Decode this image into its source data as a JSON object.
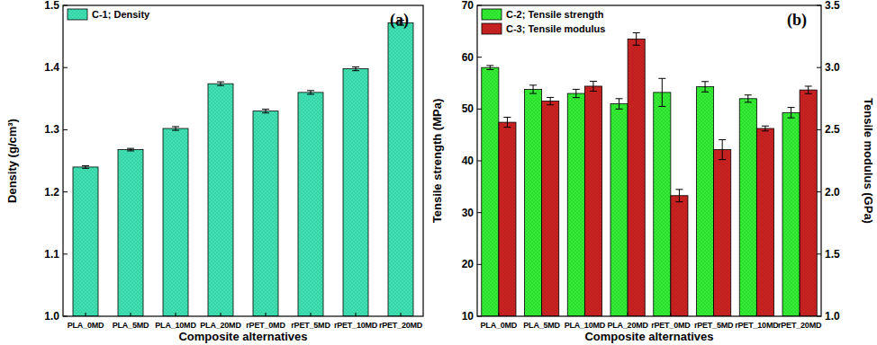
{
  "chart_data": [
    {
      "type": "bar",
      "title": "(a)",
      "x_label": "Composite alternatives",
      "y_label": "Density (g/cm³)",
      "categories": [
        "PLA_0MD",
        "PLA_5MD",
        "PLA_10MD",
        "PLA_20MD",
        "rPET_0MD",
        "rPET_5MD",
        "rPET_10MD",
        "rPET_20MD"
      ],
      "series": [
        {
          "name": "C-1; Density",
          "color": "#3fe3b3",
          "values": [
            1.24,
            1.268,
            1.302,
            1.374,
            1.33,
            1.36,
            1.398,
            1.472
          ],
          "errors": [
            0.002,
            0.002,
            0.003,
            0.003,
            0.003,
            0.003,
            0.003,
            0.004
          ]
        }
      ],
      "ylim": [
        1.0,
        1.5
      ],
      "yticks": [
        {
          "value": 1.0,
          "label": "1.0"
        },
        1.1,
        1.2,
        1.3,
        1.4,
        1.5
      ],
      "legend": "top-left",
      "grid": false
    },
    {
      "type": "bar",
      "title": "(b)",
      "x_label": "Composite alternatives",
      "y_label": "Tensile strength (MPa)",
      "y2_label": "Tensile modulus (GPa)",
      "categories": [
        "PLA_0MD",
        "PLA_5MD",
        "PLA_10MD",
        "PLA_20MD",
        "rPET_0MD",
        "rPET_5MD",
        "rPET_10MD",
        "rPET_20MD"
      ],
      "series": [
        {
          "name": "C-2; Tensile strength",
          "color": "#33ee33",
          "values": [
            58.0,
            53.8,
            53.0,
            51.0,
            53.2,
            54.3,
            52.0,
            49.3
          ],
          "errors": [
            0.4,
            0.8,
            0.8,
            1.0,
            2.7,
            1.0,
            0.7,
            1.0
          ]
        },
        {
          "name": "C-3; Tensile modulus",
          "color": "#cc2222",
          "axis": "y2",
          "values": [
            2.56,
            2.73,
            2.85,
            3.23,
            1.97,
            2.34,
            2.51,
            2.82
          ],
          "errors": [
            0.04,
            0.03,
            0.04,
            0.05,
            0.05,
            0.08,
            0.02,
            0.03
          ]
        }
      ],
      "ylim": [
        10,
        70
      ],
      "yticks": [
        10,
        20,
        30,
        40,
        50,
        60,
        70
      ],
      "y2lim": [
        1.0,
        3.5
      ],
      "y2ticks": [
        {
          "value": 1.0,
          "label": "1.0"
        },
        1.5,
        {
          "value": 2.0,
          "label": "2.0"
        },
        2.5,
        {
          "value": 3.0,
          "label": "3.0"
        },
        3.5
      ],
      "legend": "top-left",
      "grid": false
    }
  ]
}
